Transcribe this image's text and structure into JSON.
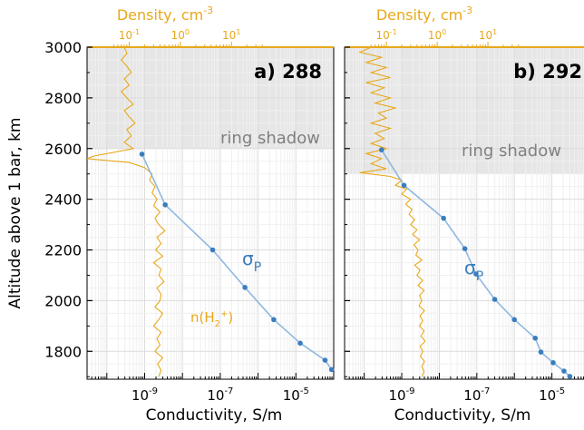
{
  "colors": {
    "conductivity": "#3a7dbf",
    "density": "#e8a81a",
    "shadow": "#e6e6e6",
    "axis": "#000000",
    "text_dark": "#333333",
    "shadow_label": "#808080"
  },
  "axis_labels": {
    "y": "Altitude above 1 bar, km",
    "x": "Conductivity, S/m",
    "top_base": "Density, cm",
    "top_sup": "-3"
  },
  "chart_data": [
    {
      "type": "line",
      "panel_label": "a) 288",
      "shadow_label": "ring shadow",
      "shadow_range_km": [
        2600,
        3000
      ],
      "ylim": [
        1690,
        3000
      ],
      "y_ticks": [
        1800,
        2000,
        2200,
        2400,
        2600,
        2800,
        3000
      ],
      "x_scale": "log",
      "xlim": [
        3e-11,
        0.0001
      ],
      "x_ticks": [
        {
          "value": 1e-09,
          "base": "10",
          "exp": "-9"
        },
        {
          "value": 1e-07,
          "base": "10",
          "exp": "-7"
        },
        {
          "value": 1e-05,
          "base": "10",
          "exp": "-5"
        }
      ],
      "top_scale": "log",
      "top_xlim": [
        0.015,
        1000
      ],
      "top_ticks": [
        {
          "value": 0.1,
          "base": "10",
          "exp": "-1"
        },
        {
          "value": 1,
          "base": "10",
          "exp": "0"
        },
        {
          "value": 10,
          "base": "10",
          "exp": "1"
        }
      ],
      "series": [
        {
          "label_main": "σ",
          "label_sub": "P",
          "axis": "bottom",
          "points": [
            {
              "x": 8.5e-10,
              "y": 2578
            },
            {
              "x": 3.5e-09,
              "y": 2378
            },
            {
              "x": 6.3e-08,
              "y": 2200
            },
            {
              "x": 4.5e-07,
              "y": 2052
            },
            {
              "x": 2.6e-06,
              "y": 1925
            },
            {
              "x": 1.3e-05,
              "y": 1832
            },
            {
              "x": 5.9e-05,
              "y": 1765
            },
            {
              "x": 8.8e-05,
              "y": 1728
            }
          ]
        },
        {
          "label_main": "n(H",
          "label_sub": "2",
          "label_sup": "+",
          "label_end": ")",
          "axis": "top",
          "profile": [
            [
              3000,
              0.08
            ],
            [
              2975,
              0.09
            ],
            [
              2950,
              0.07
            ],
            [
              2925,
              0.09
            ],
            [
              2900,
              0.11
            ],
            [
              2875,
              0.08
            ],
            [
              2850,
              0.1
            ],
            [
              2825,
              0.07
            ],
            [
              2800,
              0.09
            ],
            [
              2775,
              0.12
            ],
            [
              2750,
              0.08
            ],
            [
              2725,
              0.1
            ],
            [
              2700,
              0.13
            ],
            [
              2675,
              0.09
            ],
            [
              2650,
              0.11
            ],
            [
              2625,
              0.08
            ],
            [
              2600,
              0.12
            ],
            [
              2585,
              0.05
            ],
            [
              2570,
              0.02
            ],
            [
              2560,
              0.015
            ],
            [
              2545,
              0.1
            ],
            [
              2525,
              0.2
            ],
            [
              2500,
              0.28
            ],
            [
              2475,
              0.25
            ],
            [
              2450,
              0.32
            ],
            [
              2425,
              0.28
            ],
            [
              2400,
              0.35
            ],
            [
              2375,
              0.3
            ],
            [
              2350,
              0.4
            ],
            [
              2325,
              0.32
            ],
            [
              2300,
              0.38
            ],
            [
              2275,
              0.5
            ],
            [
              2250,
              0.35
            ],
            [
              2225,
              0.42
            ],
            [
              2200,
              0.33
            ],
            [
              2175,
              0.45
            ],
            [
              2150,
              0.3
            ],
            [
              2125,
              0.42
            ],
            [
              2100,
              0.38
            ],
            [
              2075,
              0.48
            ],
            [
              2050,
              0.35
            ],
            [
              2025,
              0.42
            ],
            [
              2000,
              0.4
            ],
            [
              1975,
              0.32
            ],
            [
              1950,
              0.45
            ],
            [
              1925,
              0.38
            ],
            [
              1900,
              0.3
            ],
            [
              1875,
              0.42
            ],
            [
              1850,
              0.35
            ],
            [
              1825,
              0.4
            ],
            [
              1800,
              0.32
            ],
            [
              1775,
              0.45
            ],
            [
              1750,
              0.36
            ],
            [
              1725,
              0.42
            ],
            [
              1700,
              0.38
            ]
          ]
        }
      ]
    },
    {
      "type": "line",
      "panel_label": "b) 292",
      "shadow_label": "ring shadow",
      "shadow_range_km": [
        2500,
        3000
      ],
      "ylim": [
        1690,
        3000
      ],
      "y_ticks": [
        1800,
        2000,
        2200,
        2400,
        2600,
        2800,
        3000
      ],
      "x_scale": "log",
      "xlim": [
        3e-11,
        0.0001
      ],
      "x_ticks": [
        {
          "value": 1e-09,
          "base": "10",
          "exp": "-9"
        },
        {
          "value": 1e-07,
          "base": "10",
          "exp": "-7"
        },
        {
          "value": 1e-05,
          "base": "10",
          "exp": "-5"
        }
      ],
      "top_scale": "log",
      "top_xlim": [
        0.015,
        1000
      ],
      "top_ticks": [
        {
          "value": 0.1,
          "base": "10",
          "exp": "-1"
        },
        {
          "value": 1,
          "base": "10",
          "exp": "0"
        },
        {
          "value": 10,
          "base": "10",
          "exp": "1"
        }
      ],
      "series": [
        {
          "label_main": "σ",
          "label_sub": "P",
          "axis": "bottom",
          "points": [
            {
              "x": 2.9e-10,
              "y": 2595
            },
            {
              "x": 1.15e-09,
              "y": 2455
            },
            {
              "x": 1.3e-08,
              "y": 2325
            },
            {
              "x": 4.8e-08,
              "y": 2205
            },
            {
              "x": 9.5e-08,
              "y": 2105
            },
            {
              "x": 3e-07,
              "y": 2005
            },
            {
              "x": 1e-06,
              "y": 1925
            },
            {
              "x": 3.6e-06,
              "y": 1852
            },
            {
              "x": 5.1e-06,
              "y": 1797
            },
            {
              "x": 1.08e-05,
              "y": 1755
            },
            {
              "x": 2.1e-05,
              "y": 1722
            },
            {
              "x": 3e-05,
              "y": 1701
            }
          ]
        },
        {
          "axis": "top",
          "profile": [
            [
              3000,
              0.05
            ],
            [
              2980,
              0.03
            ],
            [
              2960,
              0.08
            ],
            [
              2940,
              0.04
            ],
            [
              2920,
              0.1
            ],
            [
              2900,
              0.05
            ],
            [
              2880,
              0.12
            ],
            [
              2860,
              0.04
            ],
            [
              2840,
              0.09
            ],
            [
              2820,
              0.05
            ],
            [
              2800,
              0.12
            ],
            [
              2780,
              0.06
            ],
            [
              2760,
              0.15
            ],
            [
              2740,
              0.07
            ],
            [
              2720,
              0.1
            ],
            [
              2700,
              0.05
            ],
            [
              2680,
              0.12
            ],
            [
              2660,
              0.06
            ],
            [
              2640,
              0.09
            ],
            [
              2620,
              0.05
            ],
            [
              2600,
              0.1
            ],
            [
              2580,
              0.04
            ],
            [
              2560,
              0.08
            ],
            [
              2540,
              0.05
            ],
            [
              2520,
              0.1
            ],
            [
              2505,
              0.03
            ],
            [
              2490,
              0.12
            ],
            [
              2475,
              0.2
            ],
            [
              2455,
              0.15
            ],
            [
              2440,
              0.25
            ],
            [
              2420,
              0.2
            ],
            [
              2400,
              0.3
            ],
            [
              2380,
              0.24
            ],
            [
              2360,
              0.32
            ],
            [
              2340,
              0.28
            ],
            [
              2320,
              0.36
            ],
            [
              2300,
              0.3
            ],
            [
              2280,
              0.4
            ],
            [
              2260,
              0.33
            ],
            [
              2240,
              0.45
            ],
            [
              2220,
              0.35
            ],
            [
              2200,
              0.42
            ],
            [
              2180,
              0.38
            ],
            [
              2160,
              0.5
            ],
            [
              2140,
              0.36
            ],
            [
              2120,
              0.46
            ],
            [
              2100,
              0.4
            ],
            [
              2080,
              0.52
            ],
            [
              2060,
              0.42
            ],
            [
              2040,
              0.55
            ],
            [
              2020,
              0.45
            ],
            [
              2000,
              0.5
            ],
            [
              1980,
              0.44
            ],
            [
              1960,
              0.56
            ],
            [
              1940,
              0.46
            ],
            [
              1920,
              0.52
            ],
            [
              1900,
              0.45
            ],
            [
              1880,
              0.55
            ],
            [
              1860,
              0.48
            ],
            [
              1840,
              0.58
            ],
            [
              1820,
              0.46
            ],
            [
              1800,
              0.52
            ],
            [
              1780,
              0.47
            ],
            [
              1760,
              0.56
            ],
            [
              1740,
              0.5
            ],
            [
              1720,
              0.55
            ],
            [
              1700,
              0.5
            ]
          ]
        }
      ]
    }
  ]
}
